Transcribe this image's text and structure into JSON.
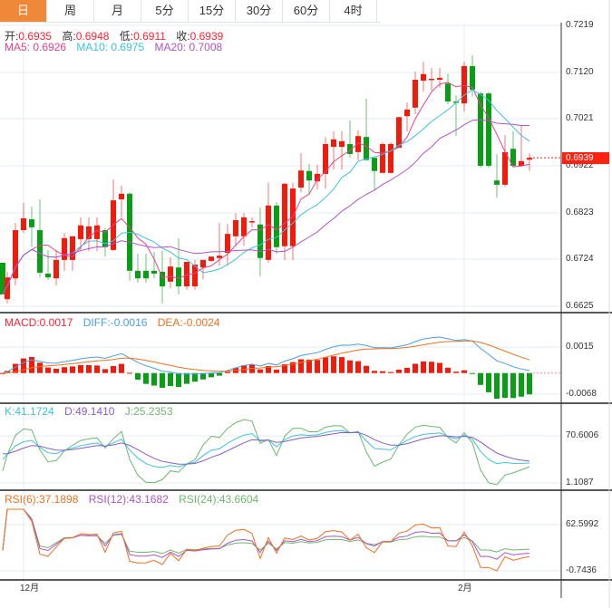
{
  "tabs": [
    {
      "label": "日",
      "active": true
    },
    {
      "label": "周"
    },
    {
      "label": "月"
    },
    {
      "label": "5分"
    },
    {
      "label": "15分"
    },
    {
      "label": "30分"
    },
    {
      "label": "60分"
    },
    {
      "label": "4时"
    }
  ],
  "ohlc": {
    "open_label": "开:",
    "open": "0.6935",
    "high_label": "高:",
    "high": "0.6948",
    "low_label": "低:",
    "low": "0.6911",
    "close_label": "收:",
    "close": "0.6939"
  },
  "ma": {
    "ma5": "MA5: 0.6926",
    "ma10": "MA10: 0.6975",
    "ma20": "MA20: 0.7008"
  },
  "price_axis": [
    "0.7219",
    "0.7120",
    "0.7021",
    "0.6922",
    "0.6823",
    "0.6724",
    "0.6625"
  ],
  "current_price": "0.6939",
  "macd": {
    "macd": "MACD:0.0017",
    "diff": "DIFF:-0.0016",
    "dea": "DEA:-0.0024",
    "axis": [
      "0.0015",
      "-0.0068"
    ]
  },
  "kdj": {
    "k": "K:41.1724",
    "d": "D:49.1410",
    "j": "J:25.2353",
    "axis": [
      "70.6006",
      "1.1087"
    ]
  },
  "rsi": {
    "rsi6": "RSI(6):37.1898",
    "rsi12": "RSI(12):43.1682",
    "rsi24": "RSI(24):43.6604",
    "axis": [
      "62.5992",
      "-0.7436"
    ]
  },
  "dates": [
    "12月",
    "2月"
  ],
  "colors": {
    "up": "#f21a0a",
    "down": "#0a9e16",
    "ma5": "#e8408a",
    "ma10": "#3cc3dc",
    "ma20": "#b052c8",
    "diff": "#4a9ee8",
    "dea": "#f07020",
    "accent": "#f0883a"
  },
  "candles": [
    [
      0.6717,
      0.6717,
      0.665,
      0.665
    ],
    [
      0.664,
      0.6698,
      0.6631,
      0.6686
    ],
    [
      0.6684,
      0.6801,
      0.6669,
      0.6786
    ],
    [
      0.6786,
      0.6844,
      0.678,
      0.6811
    ],
    [
      0.6809,
      0.6836,
      0.675,
      0.6792
    ],
    [
      0.6786,
      0.6851,
      0.6686,
      0.6696
    ],
    [
      0.6694,
      0.6744,
      0.6681,
      0.6686
    ],
    [
      0.6684,
      0.6744,
      0.6669,
      0.6723
    ],
    [
      0.6723,
      0.678,
      0.67,
      0.6769
    ],
    [
      0.6723,
      0.6773,
      0.67,
      0.6773
    ],
    [
      0.6767,
      0.6813,
      0.6742,
      0.6796
    ],
    [
      0.6767,
      0.6813,
      0.6742,
      0.6794
    ],
    [
      0.6767,
      0.6813,
      0.6742,
      0.6796
    ],
    [
      0.6786,
      0.679,
      0.673,
      0.675
    ],
    [
      0.6744,
      0.6893,
      0.6742,
      0.6849
    ],
    [
      0.6851,
      0.688,
      0.6813,
      0.6863
    ],
    [
      0.6863,
      0.6866,
      0.6679,
      0.67
    ],
    [
      0.67,
      0.6736,
      0.6675,
      0.6684
    ],
    [
      0.67,
      0.6736,
      0.6675,
      0.6684
    ],
    [
      0.67,
      0.674,
      0.6684,
      0.6694
    ],
    [
      0.6698,
      0.6742,
      0.6631,
      0.6667
    ],
    [
      0.6677,
      0.6729,
      0.6663,
      0.6709
    ],
    [
      0.6707,
      0.6769,
      0.665,
      0.6667
    ],
    [
      0.6667,
      0.6719,
      0.666,
      0.6719
    ],
    [
      0.6667,
      0.6723,
      0.666,
      0.6713
    ],
    [
      0.6707,
      0.6723,
      0.6682,
      0.6723
    ],
    [
      0.6721,
      0.673,
      0.6719,
      0.673
    ],
    [
      0.6727,
      0.6801,
      0.6711,
      0.6732
    ],
    [
      0.6738,
      0.6799,
      0.6711,
      0.6778
    ],
    [
      0.6773,
      0.6822,
      0.6752,
      0.6807
    ],
    [
      0.6773,
      0.6822,
      0.6753,
      0.6813
    ],
    [
      0.6803,
      0.6813,
      0.6792,
      0.6805
    ],
    [
      0.6798,
      0.6834,
      0.6688,
      0.6727
    ],
    [
      0.6723,
      0.6886,
      0.6717,
      0.6838
    ],
    [
      0.6838,
      0.6845,
      0.6736,
      0.675
    ],
    [
      0.6752,
      0.6886,
      0.6723,
      0.6884
    ],
    [
      0.6752,
      0.6886,
      0.6723,
      0.6874
    ],
    [
      0.6876,
      0.6949,
      0.6866,
      0.6912
    ],
    [
      0.6911,
      0.6926,
      0.6861,
      0.6891
    ],
    [
      0.6889,
      0.6924,
      0.6872,
      0.6905
    ],
    [
      0.6905,
      0.6983,
      0.6874,
      0.6968
    ],
    [
      0.6962,
      0.6995,
      0.6914,
      0.6978
    ],
    [
      0.6962,
      0.6995,
      0.6914,
      0.6974
    ],
    [
      0.6968,
      0.7018,
      0.6939,
      0.6947
    ],
    [
      0.6951,
      0.6997,
      0.6934,
      0.6985
    ],
    [
      0.6983,
      0.7064,
      0.6934,
      0.6934
    ],
    [
      0.6939,
      0.6939,
      0.6872,
      0.6911
    ],
    [
      0.6907,
      0.6972,
      0.6907,
      0.6968
    ],
    [
      0.6907,
      0.6972,
      0.6907,
      0.6968
    ],
    [
      0.696,
      0.7025,
      0.696,
      0.7025
    ],
    [
      0.7027,
      0.7056,
      0.6995,
      0.7041
    ],
    [
      0.7045,
      0.7121,
      0.7031,
      0.7104
    ],
    [
      0.7102,
      0.7142,
      0.7079,
      0.7116
    ],
    [
      0.7104,
      0.7129,
      0.7081,
      0.7106
    ],
    [
      0.7104,
      0.7129,
      0.7087,
      0.7108
    ],
    [
      0.7096,
      0.7117,
      0.7052,
      0.7058
    ],
    [
      0.7058,
      0.7071,
      0.6985,
      0.7056
    ],
    [
      0.7054,
      0.7142,
      0.7037,
      0.7133
    ],
    [
      0.7133,
      0.7156,
      0.7068,
      0.7083
    ],
    [
      0.7075,
      0.7079,
      0.6918,
      0.6922
    ],
    [
      0.7075,
      0.7079,
      0.6918,
      0.6922
    ],
    [
      0.6891,
      0.6947,
      0.6855,
      0.6882
    ],
    [
      0.6882,
      0.6987,
      0.6878,
      0.6951
    ],
    [
      0.6958,
      0.6995,
      0.6918,
      0.6922
    ],
    [
      0.6922,
      0.7008,
      0.692,
      0.6932
    ],
    [
      0.6935,
      0.6948,
      0.6911,
      0.6939
    ]
  ]
}
